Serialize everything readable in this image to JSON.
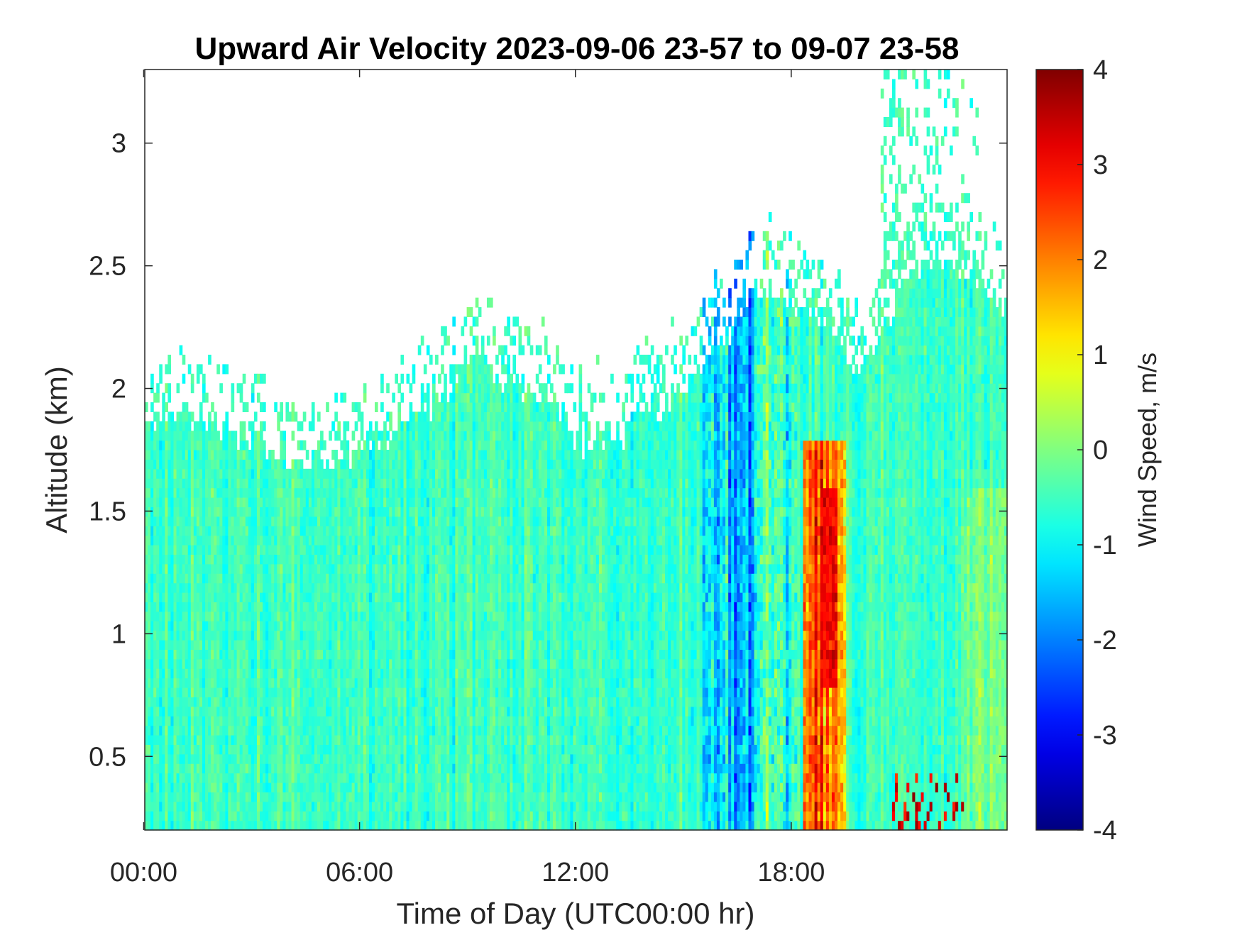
{
  "chart_data": {
    "type": "heatmap",
    "title": "Upward Air Velocity 2023-09-06 23-57 to 09-07 23-58",
    "xlabel": "Time of Day (UTC00:00 hr)",
    "ylabel": "Altitude (km)",
    "x_unit": "hours",
    "xlim": [
      0,
      24
    ],
    "ylim": [
      0.2,
      3.3
    ],
    "x_ticks": [
      0,
      6,
      12,
      18
    ],
    "x_tick_labels": [
      "00:00",
      "06:00",
      "12:00",
      "18:00"
    ],
    "y_ticks": [
      0.5,
      1,
      1.5,
      2,
      2.5,
      3
    ],
    "y_tick_labels": [
      "0.5",
      "1",
      "1.5",
      "2",
      "2.5",
      "3"
    ],
    "colorbar": {
      "label": "Wind Speed, m/s",
      "colormap": "jet",
      "clim": [
        -4,
        4
      ],
      "ticks": [
        -4,
        -3,
        -2,
        -1,
        0,
        1,
        2,
        3,
        4
      ],
      "tick_labels": [
        "-4",
        "-3",
        "-2",
        "-1",
        "0",
        "1",
        "2",
        "3",
        "4"
      ]
    },
    "data_top_altitude_km": [
      [
        0,
        1.85
      ],
      [
        1,
        1.88
      ],
      [
        2,
        1.85
      ],
      [
        3,
        1.8
      ],
      [
        3.5,
        1.75
      ],
      [
        4.5,
        1.7
      ],
      [
        5.5,
        1.72
      ],
      [
        6.5,
        1.78
      ],
      [
        7.5,
        1.88
      ],
      [
        8.5,
        2.02
      ],
      [
        9,
        2.12
      ],
      [
        9.5,
        2.15
      ],
      [
        10,
        2.05
      ],
      [
        11,
        1.98
      ],
      [
        12,
        1.8
      ],
      [
        13,
        1.78
      ],
      [
        14,
        1.9
      ],
      [
        15,
        1.98
      ],
      [
        16,
        2.2
      ],
      [
        17,
        2.4
      ],
      [
        18,
        2.35
      ],
      [
        19,
        2.22
      ],
      [
        20,
        2.05
      ],
      [
        21,
        2.4
      ],
      [
        22,
        2.55
      ],
      [
        23,
        2.45
      ],
      [
        24,
        2.3
      ]
    ],
    "features": [
      {
        "x_range": [
          0,
          15.5
        ],
        "velocity_m_s": [
          -1,
          0
        ]
      },
      {
        "x_range": [
          15.5,
          18
        ],
        "velocity_m_s": [
          -3,
          -1
        ]
      },
      {
        "x_range": [
          18.3,
          19.5
        ],
        "velocity_m_s": [
          1,
          4
        ]
      },
      {
        "x_range": [
          21,
          22.5
        ],
        "velocity_m_s": [
          -1,
          3
        ]
      },
      {
        "x_range": [
          20.5,
          23
        ],
        "altitude_range_km": [
          2.5,
          3.3
        ],
        "velocity_m_s": [
          -1,
          0
        ]
      }
    ]
  }
}
